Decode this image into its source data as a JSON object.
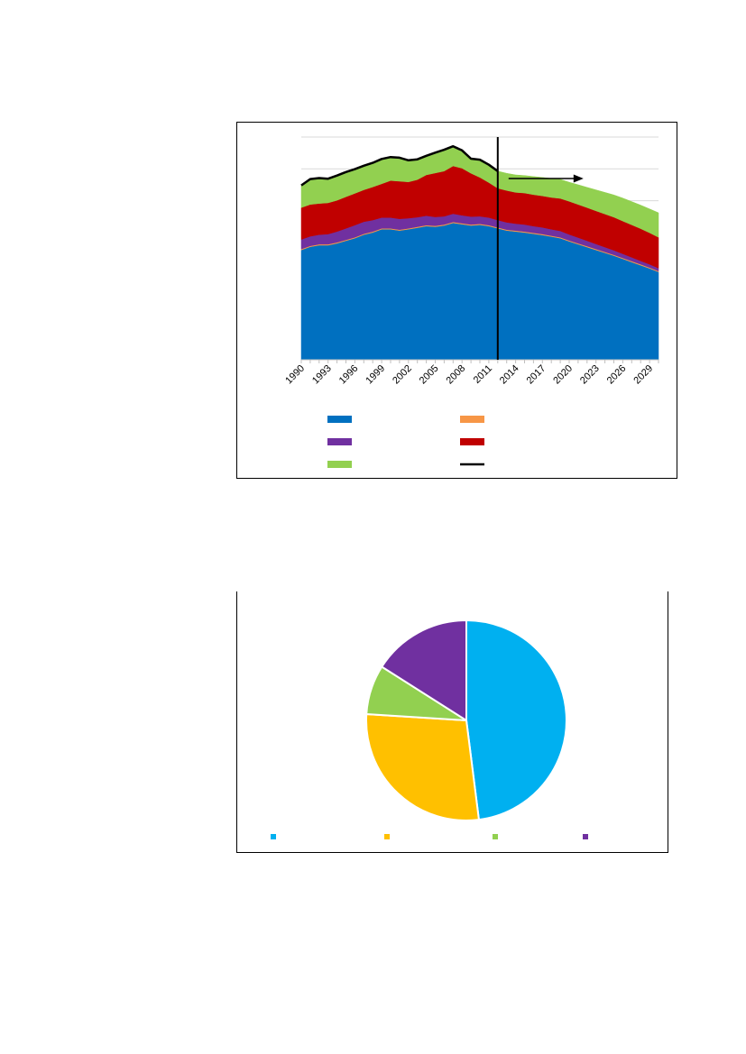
{
  "chart_data": [
    {
      "type": "area",
      "stacked": true,
      "x": [
        1990,
        1991,
        1992,
        1993,
        1994,
        1995,
        1996,
        1997,
        1998,
        1999,
        2000,
        2001,
        2002,
        2003,
        2004,
        2005,
        2006,
        2007,
        2008,
        2009,
        2010,
        2011,
        2012,
        2013,
        2014,
        2015,
        2016,
        2017,
        2018,
        2019,
        2020,
        2021,
        2022,
        2023,
        2024,
        2025,
        2026,
        2027,
        2028,
        2029,
        2030
      ],
      "x_tick_labels": [
        "1990",
        "1993",
        "1996",
        "1999",
        "2002",
        "2005",
        "2008",
        "2011",
        "2014",
        "2017",
        "2020",
        "2023",
        "2026",
        "2029"
      ],
      "projection_start": 2012,
      "projection_arrow": true,
      "ylim": [
        0,
        7
      ],
      "y_gridlines": [
        1,
        2,
        3,
        4,
        5,
        6,
        7
      ],
      "y_tick_labels": [],
      "series": [
        {
          "color": "#0070c0",
          "values": [
            3.45,
            3.55,
            3.6,
            3.6,
            3.66,
            3.74,
            3.82,
            3.93,
            4.0,
            4.1,
            4.1,
            4.06,
            4.1,
            4.15,
            4.2,
            4.18,
            4.22,
            4.3,
            4.26,
            4.22,
            4.24,
            4.2,
            4.13,
            4.06,
            4.03,
            4.0,
            3.96,
            3.92,
            3.87,
            3.82,
            3.72,
            3.63,
            3.54,
            3.45,
            3.36,
            3.27,
            3.17,
            3.07,
            2.97,
            2.87,
            2.76
          ]
        },
        {
          "color": "#f79646",
          "values": [
            0.03,
            0.03,
            0.03,
            0.03,
            0.03,
            0.03,
            0.03,
            0.03,
            0.03,
            0.03,
            0.03,
            0.03,
            0.03,
            0.03,
            0.03,
            0.03,
            0.03,
            0.03,
            0.03,
            0.03,
            0.03,
            0.03,
            0.03,
            0.03,
            0.03,
            0.03,
            0.03,
            0.03,
            0.03,
            0.03,
            0.03,
            0.03,
            0.03,
            0.03,
            0.03,
            0.03,
            0.03,
            0.03,
            0.03,
            0.03,
            0.03
          ]
        },
        {
          "color": "#7030a0",
          "values": [
            0.3,
            0.3,
            0.3,
            0.32,
            0.34,
            0.36,
            0.38,
            0.38,
            0.36,
            0.34,
            0.34,
            0.34,
            0.32,
            0.3,
            0.3,
            0.28,
            0.26,
            0.26,
            0.25,
            0.25,
            0.24,
            0.24,
            0.23,
            0.23,
            0.22,
            0.22,
            0.21,
            0.21,
            0.2,
            0.2,
            0.19,
            0.18,
            0.17,
            0.16,
            0.15,
            0.14,
            0.13,
            0.12,
            0.11,
            0.1,
            0.09
          ]
        },
        {
          "color": "#c00000",
          "values": [
            1.0,
            1.0,
            0.98,
            0.98,
            0.98,
            0.99,
            1.0,
            1.0,
            1.04,
            1.06,
            1.16,
            1.18,
            1.14,
            1.18,
            1.28,
            1.38,
            1.42,
            1.5,
            1.48,
            1.36,
            1.22,
            1.1,
            1.0,
            1.0,
            0.98,
            0.99,
            0.99,
            0.99,
            1.0,
            1.02,
            1.04,
            1.04,
            1.04,
            1.04,
            1.04,
            1.04,
            1.03,
            1.02,
            1.01,
            0.99,
            0.97
          ]
        },
        {
          "color": "#92d050",
          "values": [
            0.7,
            0.8,
            0.8,
            0.76,
            0.78,
            0.78,
            0.76,
            0.76,
            0.76,
            0.78,
            0.74,
            0.74,
            0.68,
            0.64,
            0.6,
            0.64,
            0.67,
            0.62,
            0.56,
            0.46,
            0.56,
            0.56,
            0.54,
            0.54,
            0.55,
            0.55,
            0.57,
            0.58,
            0.6,
            0.6,
            0.6,
            0.62,
            0.64,
            0.66,
            0.68,
            0.7,
            0.72,
            0.73,
            0.74,
            0.75,
            0.77
          ]
        }
      ],
      "total_line_color": "#000000",
      "total_line_until": 2012,
      "legend": [
        {
          "color": "#0070c0",
          "label": ""
        },
        {
          "color": "#f79646",
          "label": ""
        },
        {
          "color": "#7030a0",
          "label": ""
        },
        {
          "color": "#c00000",
          "label": ""
        },
        {
          "color": "#92d050",
          "label": ""
        },
        {
          "color": "#000000",
          "label": "",
          "style": "line"
        }
      ]
    },
    {
      "type": "pie",
      "values": [
        48,
        28,
        8,
        16
      ],
      "colors": [
        "#00b0f0",
        "#ffc000",
        "#92d050",
        "#7030a0"
      ],
      "labels": [
        "",
        "",
        "",
        ""
      ]
    }
  ]
}
